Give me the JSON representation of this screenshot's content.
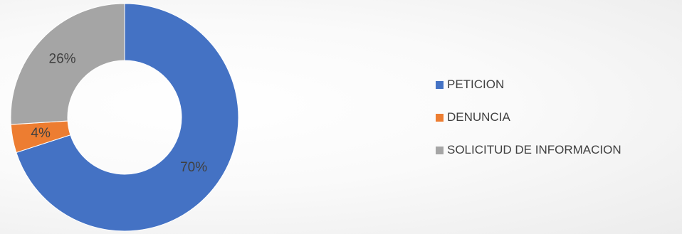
{
  "chart_data": {
    "type": "pie",
    "variant": "donut",
    "categories": [
      "PETICION",
      "DENUNCIA",
      "SOLICITUD DE INFORMACION"
    ],
    "values": [
      70,
      4,
      26
    ],
    "unit": "%",
    "data_labels": [
      "70%",
      "4%",
      "26%"
    ],
    "colors": [
      "#4472C4",
      "#ED7D31",
      "#A5A5A5"
    ],
    "start_angle_deg": 0,
    "direction": "clockwise",
    "legend": "right"
  }
}
